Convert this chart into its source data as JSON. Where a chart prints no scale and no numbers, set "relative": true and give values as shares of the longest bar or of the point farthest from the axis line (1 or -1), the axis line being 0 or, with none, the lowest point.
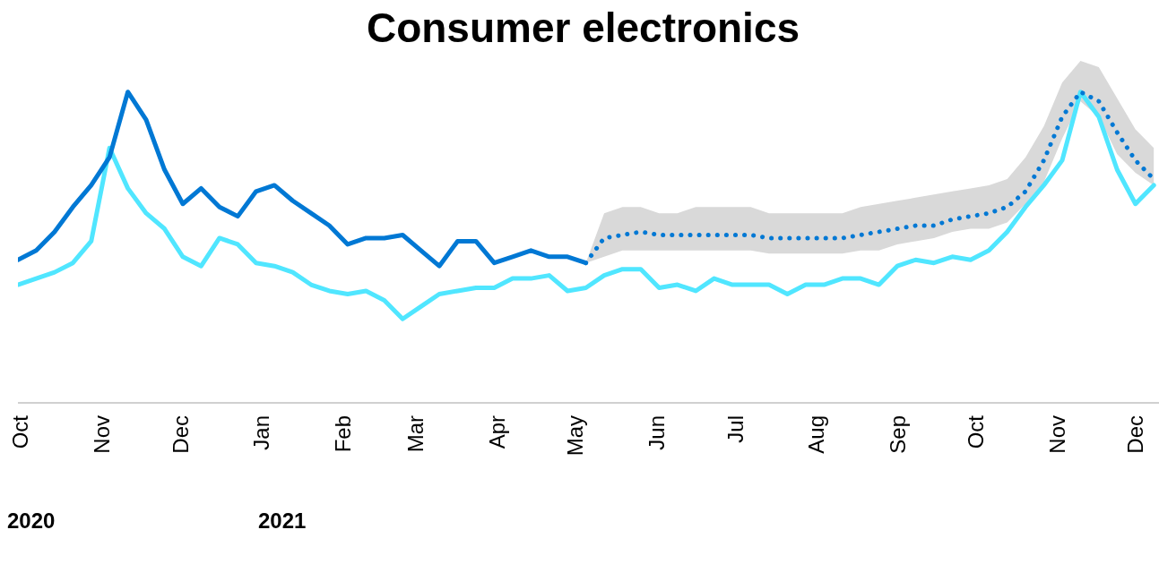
{
  "chart_data": {
    "type": "line",
    "title": "Consumer electronics",
    "relative": true,
    "grid": false,
    "legend": false,
    "x": [
      "2020-09-30",
      "2020-10-07",
      "2020-10-14",
      "2020-10-21",
      "2020-10-28",
      "2020-11-04",
      "2020-11-11",
      "2020-11-18",
      "2020-11-25",
      "2020-12-02",
      "2020-12-09",
      "2020-12-16",
      "2020-12-23",
      "2020-12-30",
      "2021-01-06",
      "2021-01-13",
      "2021-01-20",
      "2021-01-27",
      "2021-02-03",
      "2021-02-10",
      "2021-02-17",
      "2021-02-24",
      "2021-03-03",
      "2021-03-10",
      "2021-03-17",
      "2021-03-24",
      "2021-03-31",
      "2021-04-07",
      "2021-04-14",
      "2021-04-21",
      "2021-04-28",
      "2021-05-05",
      "2021-05-12",
      "2021-05-19",
      "2021-05-26",
      "2021-06-02",
      "2021-06-09",
      "2021-06-16",
      "2021-06-23",
      "2021-06-30",
      "2021-07-07",
      "2021-07-14",
      "2021-07-21",
      "2021-07-28",
      "2021-08-04",
      "2021-08-11",
      "2021-08-18",
      "2021-08-25",
      "2021-09-01",
      "2021-09-08",
      "2021-09-15",
      "2021-09-22",
      "2021-09-29",
      "2021-10-06",
      "2021-10-13",
      "2021-10-20",
      "2021-10-27",
      "2021-11-03",
      "2021-11-10",
      "2021-11-17",
      "2021-11-24",
      "2021-12-01",
      "2021-12-08"
    ],
    "xlim": [
      "2020-09-30",
      "2021-12-10"
    ],
    "xticks": [
      {
        "value": "2020-10-01",
        "label": "Oct"
      },
      {
        "value": "2020-11-01",
        "label": "Nov"
      },
      {
        "value": "2020-12-01",
        "label": "Dec"
      },
      {
        "value": "2021-01-01",
        "label": "Jan"
      },
      {
        "value": "2021-02-01",
        "label": "Feb"
      },
      {
        "value": "2021-03-01",
        "label": "Mar"
      },
      {
        "value": "2021-04-01",
        "label": "Apr"
      },
      {
        "value": "2021-05-01",
        "label": "May"
      },
      {
        "value": "2021-06-01",
        "label": "Jun"
      },
      {
        "value": "2021-07-01",
        "label": "Jul"
      },
      {
        "value": "2021-08-01",
        "label": "Aug"
      },
      {
        "value": "2021-09-01",
        "label": "Sep"
      },
      {
        "value": "2021-10-01",
        "label": "Oct"
      },
      {
        "value": "2021-11-01",
        "label": "Nov"
      },
      {
        "value": "2021-12-01",
        "label": "Dec"
      }
    ],
    "series": [
      {
        "color": "#50e6ff",
        "line_style": "solid",
        "values": [
          0.38,
          0.4,
          0.42,
          0.45,
          0.52,
          0.82,
          0.69,
          0.61,
          0.56,
          0.47,
          0.44,
          0.53,
          0.51,
          0.45,
          0.44,
          0.42,
          0.38,
          0.36,
          0.35,
          0.36,
          0.33,
          0.27,
          0.31,
          0.35,
          0.36,
          0.37,
          0.37,
          0.4,
          0.4,
          0.41,
          0.36,
          0.37,
          0.41,
          0.43,
          0.43,
          0.37,
          0.38,
          0.36,
          0.4,
          0.38,
          0.38,
          0.38,
          0.35,
          0.38,
          0.38,
          0.4,
          0.4,
          0.38,
          0.44,
          0.46,
          0.45,
          0.47,
          0.46,
          0.49,
          0.55,
          0.63,
          0.7,
          0.78,
          1.0,
          0.92,
          0.75,
          0.64,
          0.7
        ]
      },
      {
        "color": "#0078d4",
        "line_style": "solid",
        "x": [
          "2020-09-30",
          "2020-10-07",
          "2020-10-14",
          "2020-10-21",
          "2020-10-28",
          "2020-11-04",
          "2020-11-11",
          "2020-11-18",
          "2020-11-25",
          "2020-12-02",
          "2020-12-09",
          "2020-12-16",
          "2020-12-23",
          "2020-12-30",
          "2021-01-06",
          "2021-01-13",
          "2021-01-20",
          "2021-01-27",
          "2021-02-03",
          "2021-02-10",
          "2021-02-17",
          "2021-02-24",
          "2021-03-03",
          "2021-03-10",
          "2021-03-17",
          "2021-03-24",
          "2021-03-31",
          "2021-04-07",
          "2021-04-14",
          "2021-04-21",
          "2021-04-28",
          "2021-05-05"
        ],
        "values": [
          0.46,
          0.49,
          0.55,
          0.63,
          0.7,
          0.79,
          1.0,
          0.91,
          0.75,
          0.64,
          0.69,
          0.63,
          0.6,
          0.68,
          0.7,
          0.65,
          0.61,
          0.57,
          0.51,
          0.53,
          0.53,
          0.54,
          0.49,
          0.44,
          0.52,
          0.52,
          0.45,
          0.47,
          0.49,
          0.47,
          0.47,
          0.45
        ]
      },
      {
        "color": "#0078d4",
        "line_style": "dotted",
        "x": [
          "2021-05-05",
          "2021-05-12",
          "2021-05-19",
          "2021-05-26",
          "2021-06-02",
          "2021-06-09",
          "2021-06-16",
          "2021-06-23",
          "2021-06-30",
          "2021-07-07",
          "2021-07-14",
          "2021-07-21",
          "2021-07-28",
          "2021-08-04",
          "2021-08-11",
          "2021-08-18",
          "2021-08-25",
          "2021-09-01",
          "2021-09-08",
          "2021-09-15",
          "2021-09-22",
          "2021-09-29",
          "2021-10-06",
          "2021-10-13",
          "2021-10-20",
          "2021-10-27",
          "2021-11-03",
          "2021-11-10",
          "2021-11-17",
          "2021-11-24",
          "2021-12-01",
          "2021-12-08"
        ],
        "values": [
          0.45,
          0.53,
          0.54,
          0.55,
          0.54,
          0.54,
          0.54,
          0.54,
          0.54,
          0.54,
          0.53,
          0.53,
          0.53,
          0.53,
          0.53,
          0.54,
          0.55,
          0.56,
          0.57,
          0.57,
          0.59,
          0.6,
          0.61,
          0.63,
          0.68,
          0.78,
          0.92,
          1.0,
          0.97,
          0.87,
          0.78,
          0.72
        ],
        "lower": [
          0.45,
          0.47,
          0.49,
          0.49,
          0.49,
          0.49,
          0.49,
          0.49,
          0.49,
          0.49,
          0.48,
          0.48,
          0.48,
          0.48,
          0.48,
          0.49,
          0.49,
          0.51,
          0.52,
          0.53,
          0.55,
          0.56,
          0.56,
          0.58,
          0.64,
          0.71,
          0.85,
          0.97,
          0.92,
          0.8,
          0.74,
          0.7
        ],
        "upper": [
          0.45,
          0.61,
          0.63,
          0.63,
          0.61,
          0.61,
          0.63,
          0.63,
          0.63,
          0.63,
          0.61,
          0.61,
          0.61,
          0.61,
          0.61,
          0.63,
          0.64,
          0.65,
          0.66,
          0.67,
          0.68,
          0.69,
          0.7,
          0.72,
          0.79,
          0.89,
          1.03,
          1.1,
          1.08,
          0.98,
          0.88,
          0.82
        ]
      }
    ],
    "annotations": [
      "2020",
      "2021"
    ]
  }
}
